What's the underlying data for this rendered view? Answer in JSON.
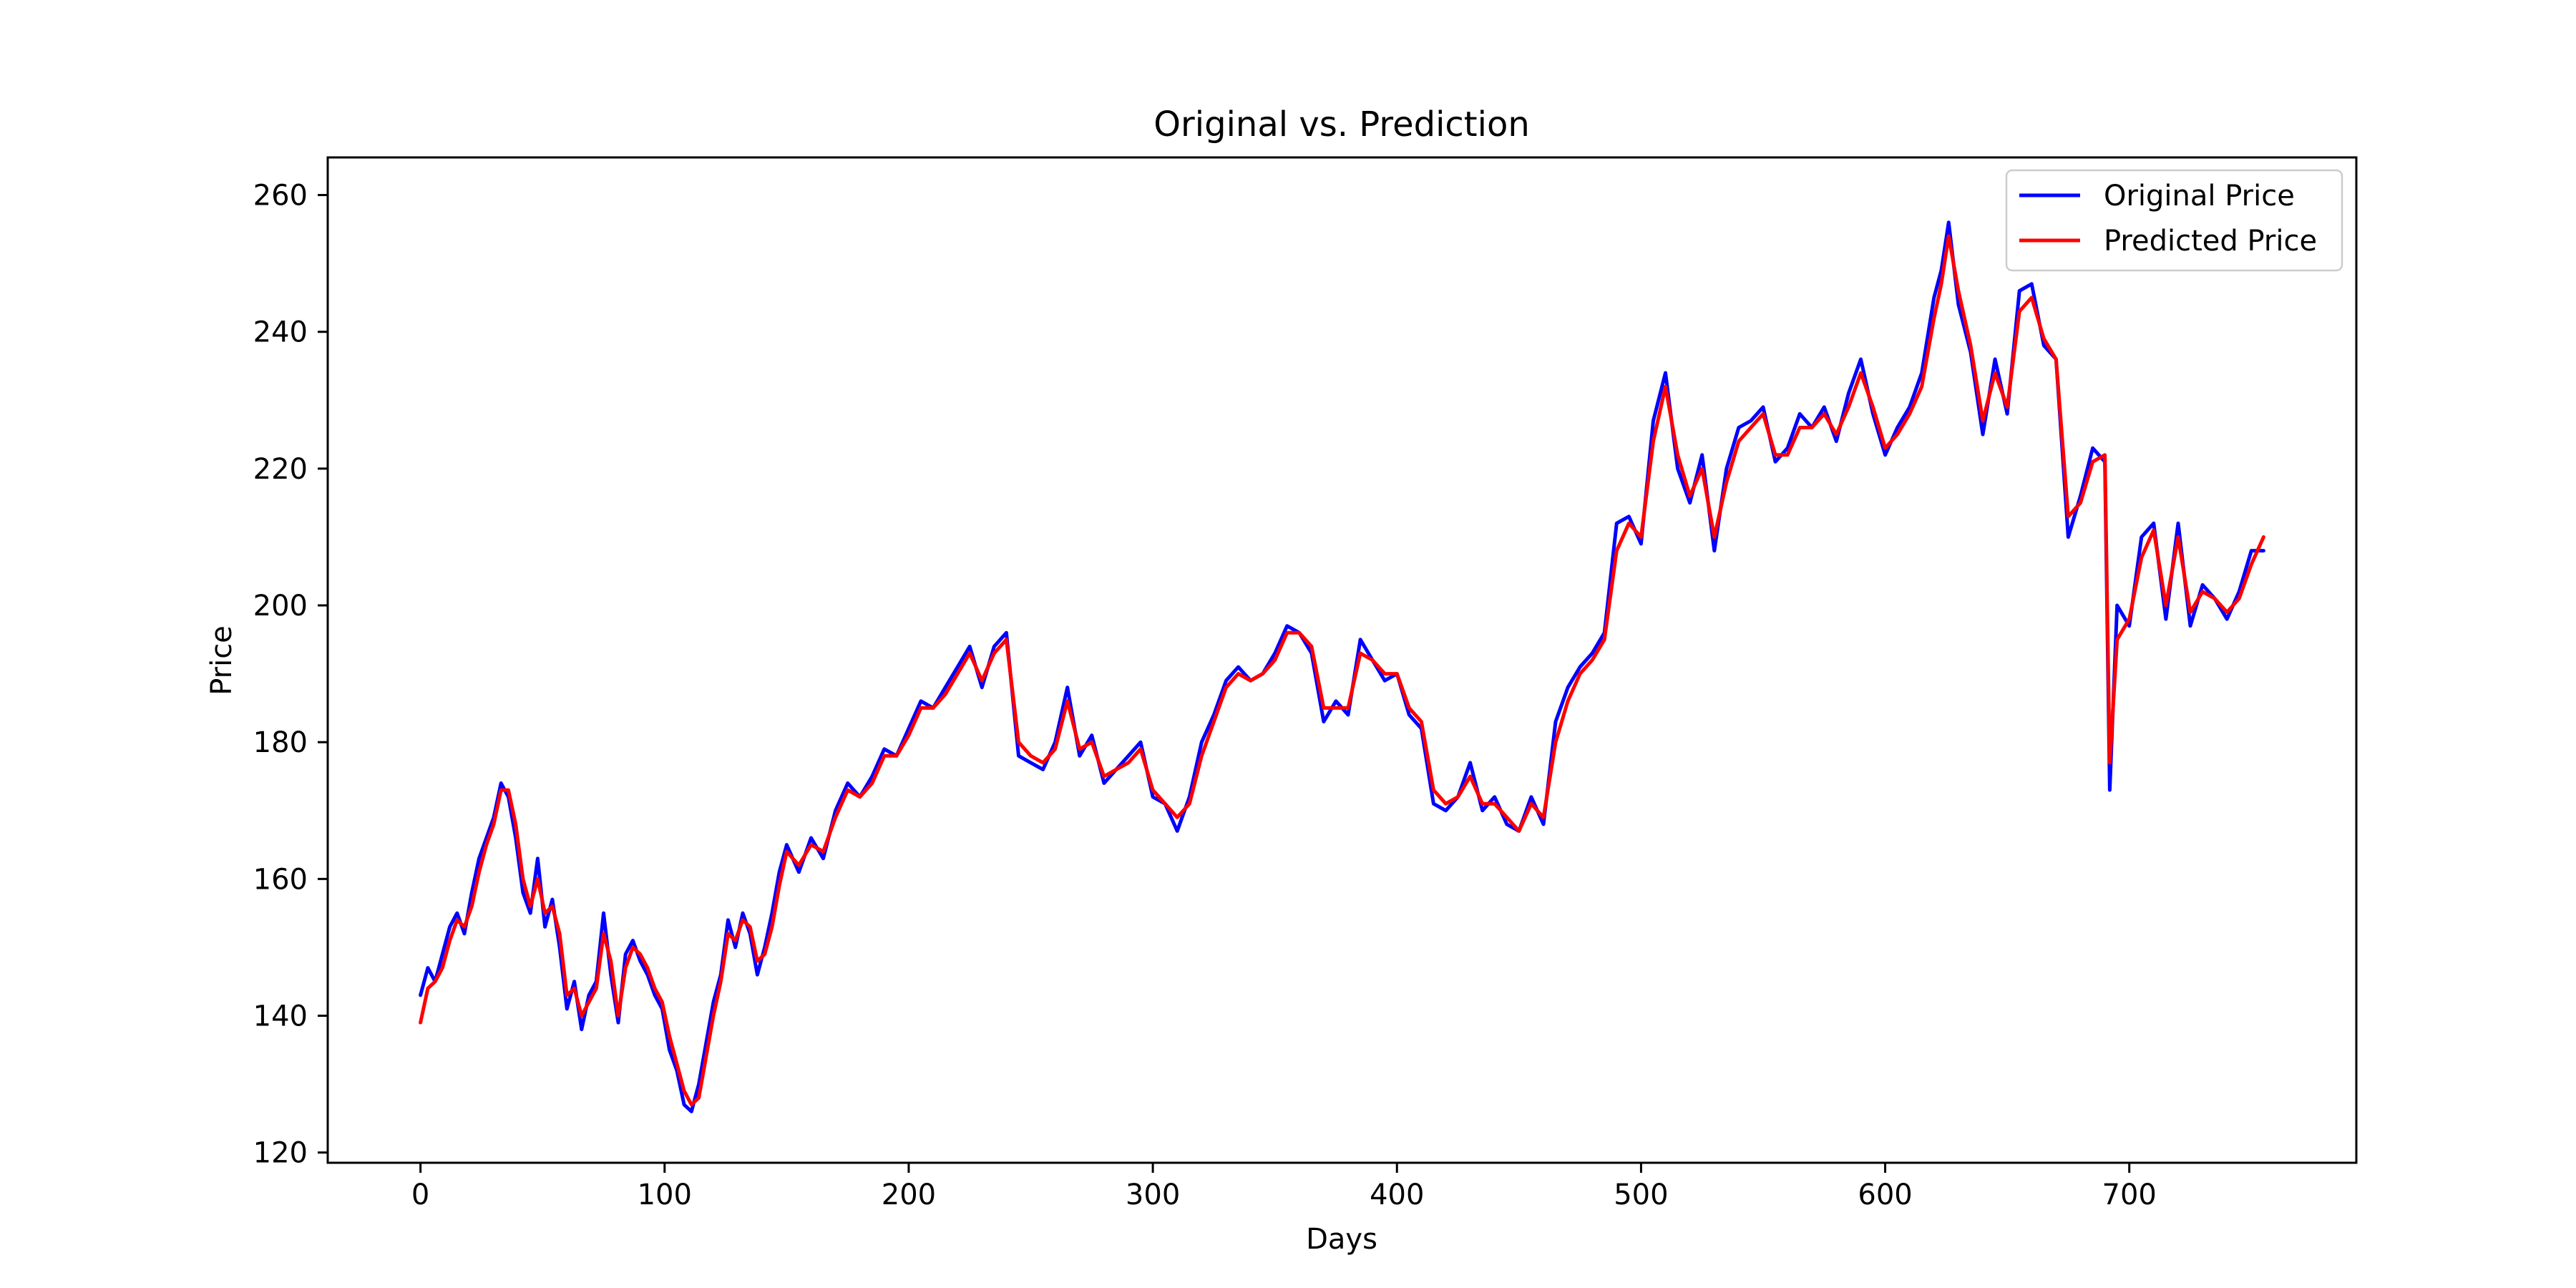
{
  "chart_data": {
    "type": "line",
    "title": "Original vs. Prediction",
    "xlabel": "Days",
    "ylabel": "Price",
    "xlim": [
      -38,
      793
    ],
    "ylim": [
      118.5,
      265.5
    ],
    "xticks": [
      0,
      100,
      200,
      300,
      400,
      500,
      600,
      700
    ],
    "yticks": [
      120,
      140,
      160,
      180,
      200,
      220,
      240,
      260
    ],
    "grid": false,
    "legend_position": "top-right",
    "series": [
      {
        "name": "Original Price",
        "color": "#0000ff",
        "x": [
          0,
          3,
          6,
          9,
          12,
          15,
          18,
          21,
          24,
          27,
          30,
          33,
          36,
          39,
          42,
          45,
          48,
          51,
          54,
          57,
          60,
          63,
          66,
          69,
          72,
          75,
          78,
          81,
          84,
          87,
          90,
          93,
          96,
          99,
          102,
          105,
          108,
          111,
          114,
          117,
          120,
          123,
          126,
          129,
          132,
          135,
          138,
          141,
          144,
          147,
          150,
          155,
          160,
          165,
          170,
          175,
          180,
          185,
          190,
          195,
          200,
          205,
          210,
          215,
          220,
          225,
          230,
          235,
          240,
          245,
          250,
          255,
          260,
          265,
          270,
          275,
          280,
          285,
          290,
          295,
          300,
          305,
          310,
          315,
          320,
          325,
          330,
          335,
          340,
          345,
          350,
          355,
          360,
          365,
          370,
          375,
          380,
          385,
          390,
          395,
          400,
          405,
          410,
          415,
          420,
          425,
          430,
          435,
          440,
          445,
          450,
          455,
          460,
          465,
          470,
          475,
          480,
          485,
          490,
          495,
          500,
          505,
          510,
          515,
          520,
          525,
          530,
          535,
          540,
          545,
          550,
          555,
          560,
          565,
          570,
          575,
          580,
          585,
          590,
          595,
          600,
          605,
          610,
          615,
          620,
          623,
          626,
          630,
          635,
          640,
          645,
          650,
          655,
          660,
          665,
          670,
          675,
          680,
          685,
          690,
          692,
          695,
          700,
          705,
          710,
          715,
          720,
          725,
          730,
          735,
          740,
          745,
          750,
          755
        ],
        "values": [
          143,
          147,
          145,
          149,
          153,
          155,
          152,
          158,
          163,
          166,
          169,
          174,
          172,
          166,
          158,
          155,
          163,
          153,
          157,
          150,
          141,
          145,
          138,
          143,
          145,
          155,
          146,
          139,
          149,
          151,
          148,
          146,
          143,
          141,
          135,
          132,
          127,
          126,
          130,
          136,
          142,
          146,
          154,
          150,
          155,
          152,
          146,
          150,
          155,
          161,
          165,
          161,
          166,
          163,
          170,
          174,
          172,
          175,
          179,
          178,
          182,
          186,
          185,
          188,
          191,
          194,
          188,
          194,
          196,
          178,
          177,
          176,
          180,
          188,
          178,
          181,
          174,
          176,
          178,
          180,
          172,
          171,
          167,
          172,
          180,
          184,
          189,
          191,
          189,
          190,
          193,
          197,
          196,
          193,
          183,
          186,
          184,
          195,
          192,
          189,
          190,
          184,
          182,
          171,
          170,
          172,
          177,
          170,
          172,
          168,
          167,
          172,
          168,
          183,
          188,
          191,
          193,
          196,
          212,
          213,
          209,
          227,
          234,
          220,
          215,
          222,
          208,
          220,
          226,
          227,
          229,
          221,
          223,
          228,
          226,
          229,
          224,
          231,
          236,
          228,
          222,
          226,
          229,
          234,
          245,
          249,
          256,
          244,
          237,
          225,
          236,
          228,
          246,
          247,
          238,
          236,
          210,
          216,
          223,
          221,
          173,
          200,
          197,
          210,
          212,
          198,
          212,
          197,
          203,
          201,
          198,
          202,
          208,
          208
        ]
      },
      {
        "name": "Predicted Price",
        "color": "#ff0000",
        "x": [
          0,
          3,
          6,
          9,
          12,
          15,
          18,
          21,
          24,
          27,
          30,
          33,
          36,
          39,
          42,
          45,
          48,
          51,
          54,
          57,
          60,
          63,
          66,
          69,
          72,
          75,
          78,
          81,
          84,
          87,
          90,
          93,
          96,
          99,
          102,
          105,
          108,
          111,
          114,
          117,
          120,
          123,
          126,
          129,
          132,
          135,
          138,
          141,
          144,
          147,
          150,
          155,
          160,
          165,
          170,
          175,
          180,
          185,
          190,
          195,
          200,
          205,
          210,
          215,
          220,
          225,
          230,
          235,
          240,
          245,
          250,
          255,
          260,
          265,
          270,
          275,
          280,
          285,
          290,
          295,
          300,
          305,
          310,
          315,
          320,
          325,
          330,
          335,
          340,
          345,
          350,
          355,
          360,
          365,
          370,
          375,
          380,
          385,
          390,
          395,
          400,
          405,
          410,
          415,
          420,
          425,
          430,
          435,
          440,
          445,
          450,
          455,
          460,
          465,
          470,
          475,
          480,
          485,
          490,
          495,
          500,
          505,
          510,
          515,
          520,
          525,
          530,
          535,
          540,
          545,
          550,
          555,
          560,
          565,
          570,
          575,
          580,
          585,
          590,
          595,
          600,
          605,
          610,
          615,
          620,
          623,
          626,
          630,
          635,
          640,
          645,
          650,
          655,
          660,
          665,
          670,
          675,
          680,
          685,
          690,
          692,
          695,
          700,
          705,
          710,
          715,
          720,
          725,
          730,
          735,
          740,
          745,
          750,
          755
        ],
        "values": [
          139,
          144,
          145,
          147,
          151,
          154,
          153,
          156,
          161,
          165,
          168,
          173,
          173,
          168,
          160,
          156,
          160,
          155,
          156,
          152,
          143,
          144,
          140,
          142,
          144,
          152,
          148,
          140,
          147,
          150,
          149,
          147,
          144,
          142,
          137,
          133,
          129,
          127,
          128,
          134,
          140,
          145,
          152,
          151,
          154,
          153,
          148,
          149,
          153,
          159,
          164,
          162,
          165,
          164,
          169,
          173,
          172,
          174,
          178,
          178,
          181,
          185,
          185,
          187,
          190,
          193,
          189,
          193,
          195,
          180,
          178,
          177,
          179,
          186,
          179,
          180,
          175,
          176,
          177,
          179,
          173,
          171,
          169,
          171,
          178,
          183,
          188,
          190,
          189,
          190,
          192,
          196,
          196,
          194,
          185,
          185,
          185,
          193,
          192,
          190,
          190,
          185,
          183,
          173,
          171,
          172,
          175,
          171,
          171,
          169,
          167,
          171,
          169,
          180,
          186,
          190,
          192,
          195,
          208,
          212,
          210,
          224,
          232,
          222,
          216,
          220,
          210,
          218,
          224,
          226,
          228,
          222,
          222,
          226,
          226,
          228,
          225,
          229,
          234,
          229,
          223,
          225,
          228,
          232,
          242,
          247,
          254,
          246,
          238,
          227,
          234,
          229,
          243,
          245,
          239,
          236,
          213,
          215,
          221,
          222,
          177,
          195,
          198,
          207,
          211,
          200,
          210,
          199,
          202,
          201,
          199,
          201,
          206,
          210
        ]
      }
    ]
  }
}
